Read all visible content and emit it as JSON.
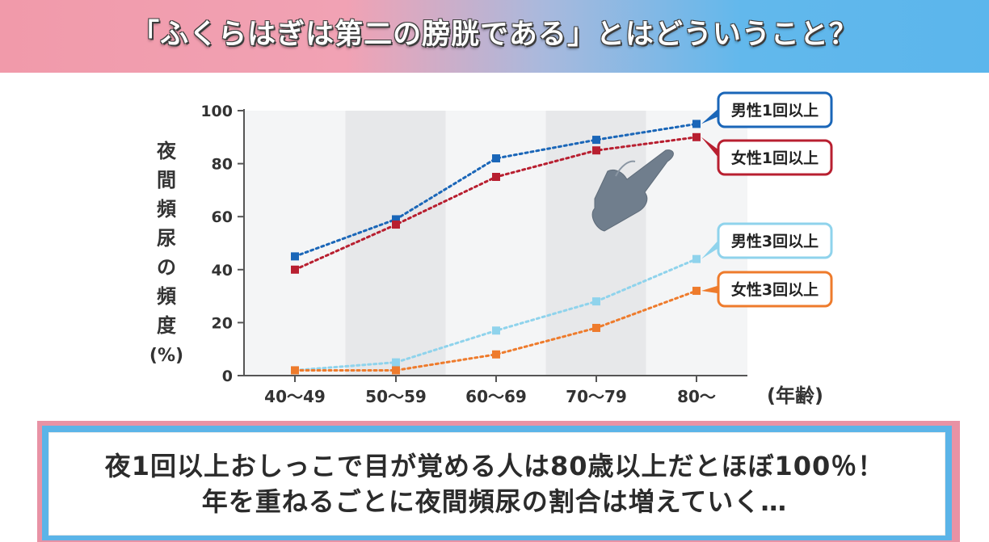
{
  "banner": {
    "title": "「ふくらはぎは第二の膀胱である」とはどういうこと？"
  },
  "chart_data": {
    "type": "line",
    "categories": [
      "40〜49",
      "50〜59",
      "60〜69",
      "70〜79",
      "80〜"
    ],
    "ylabel": "夜間頻尿の頻度(%)",
    "ylabel_chars": [
      "夜",
      "間",
      "頻",
      "尿",
      "の",
      "頻",
      "度",
      "(%)"
    ],
    "xlabel": "(年齢)",
    "ylim": [
      0,
      100
    ],
    "yticks": [
      0,
      20,
      40,
      60,
      80,
      100
    ],
    "grid": false,
    "shaded_bands": [
      "50〜59",
      "70〜79"
    ],
    "series": [
      {
        "name": "男性1回以上",
        "color": "#1a66b8",
        "values": [
          45,
          59,
          82,
          89,
          95
        ]
      },
      {
        "name": "女性1回以上",
        "color": "#b81f30",
        "values": [
          40,
          57,
          75,
          85,
          90
        ]
      },
      {
        "name": "男性3回以上",
        "color": "#8fd3ec",
        "values": [
          2,
          5,
          17,
          28,
          44
        ]
      },
      {
        "name": "女性3回以上",
        "color": "#ee7b2c",
        "values": [
          2,
          2,
          8,
          18,
          32
        ]
      }
    ],
    "legend": "right, labels at line ends",
    "icon": "pointing-hand-icon"
  },
  "caption": {
    "line1": "夜1回以上おしっこで目が覚める人は80歳以上だとほぼ100％！",
    "line2": "年を重ねるごとに夜間頻尿の割合は増えていく…"
  }
}
